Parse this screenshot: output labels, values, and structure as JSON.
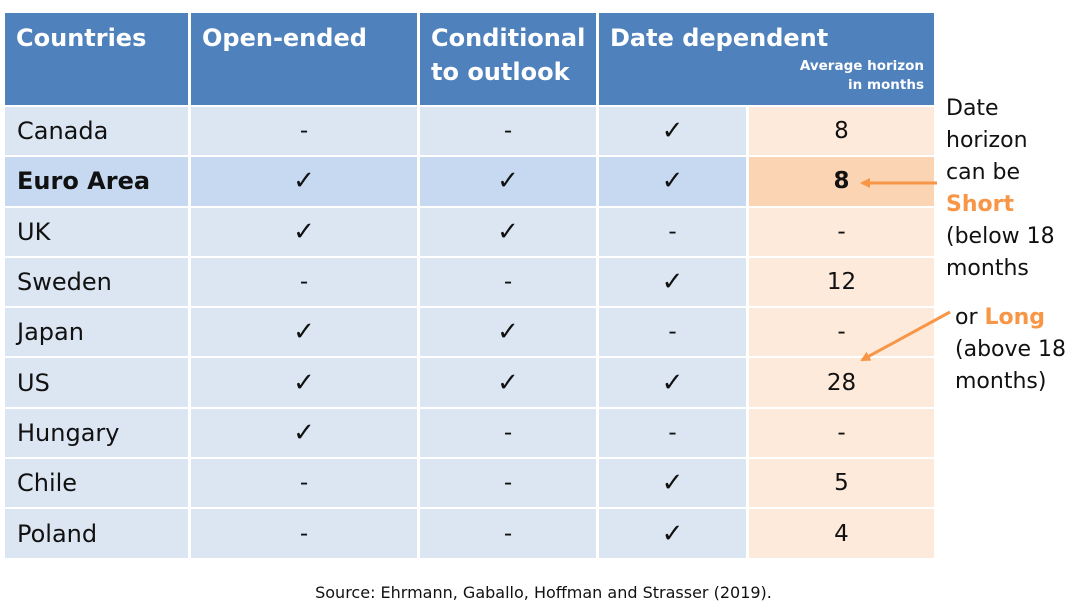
{
  "header": {
    "countries": "Countries",
    "open_ended": "Open-ended",
    "conditional": "Conditional to outlook",
    "date_dependent": "Date dependent",
    "average_horizon": "Average horizon in months"
  },
  "rows": [
    {
      "country": "Canada",
      "open": "-",
      "conditional": "-",
      "date": "✓",
      "horizon": "8",
      "highlight": false
    },
    {
      "country": "Euro Area",
      "open": "✓",
      "conditional": "✓",
      "date": "✓",
      "horizon": "8",
      "highlight": true
    },
    {
      "country": "UK",
      "open": "✓",
      "conditional": "✓",
      "date": "-",
      "horizon": "-",
      "highlight": false
    },
    {
      "country": "Sweden",
      "open": "-",
      "conditional": "-",
      "date": "✓",
      "horizon": "12",
      "highlight": false
    },
    {
      "country": "Japan",
      "open": "✓",
      "conditional": "✓",
      "date": "-",
      "horizon": "-",
      "highlight": false
    },
    {
      "country": "US",
      "open": "✓",
      "conditional": "✓",
      "date": "✓",
      "horizon": "28",
      "highlight": false
    },
    {
      "country": "Hungary",
      "open": "✓",
      "conditional": "-",
      "date": "-",
      "horizon": "-",
      "highlight": false
    },
    {
      "country": "Chile",
      "open": "-",
      "conditional": "-",
      "date": "✓",
      "horizon": "5",
      "highlight": false
    },
    {
      "country": "Poland",
      "open": "-",
      "conditional": "-",
      "date": "✓",
      "horizon": "4",
      "highlight": false
    }
  ],
  "annotations": {
    "short_line1": "Date horizon",
    "short_line2": "can be",
    "short_word": "Short",
    "short_line3": "(below 18",
    "short_line4": "months",
    "long_prefix": "or",
    "long_word": "Long",
    "long_line2": "(above 18",
    "long_line3": "months)"
  },
  "colors": {
    "header": "#4f81bd",
    "row_blue": "#dce6f2",
    "row_blue_highlight": "#c6d9f1",
    "horizon_cell": "#fdeada",
    "horizon_cell_highlight": "#fbd4b4",
    "accent": "#f79646"
  },
  "source": "Source: Ehrmann, Gaballo, Hoffman and Strasser (2019)."
}
